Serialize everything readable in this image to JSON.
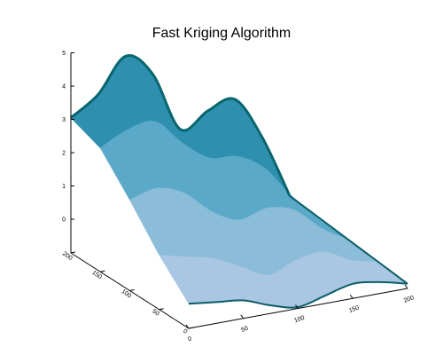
{
  "chart_data": {
    "type": "surface",
    "title": "Fast Kriging Algorithm",
    "xlabel": "",
    "ylabel": "",
    "zlabel": "",
    "x_range": [
      0,
      200
    ],
    "y_range": [
      0,
      200
    ],
    "z_range": [
      -1,
      5
    ],
    "x_ticks": [
      "0",
      "50",
      "100",
      "150",
      "200"
    ],
    "y_ticks": [
      "0",
      "50",
      "100",
      "150",
      "200"
    ],
    "z_ticks": [
      "0",
      "1",
      "2",
      "3",
      "4",
      "5"
    ],
    "grid": false,
    "legend": "none",
    "colors": {
      "surface_light": "#c4cfe8",
      "surface_mid": "#3c9bbb",
      "surface_dark": "#08666f",
      "axis": "#000000"
    },
    "surface_profiles": [
      {
        "y": 200,
        "points": [
          [
            0,
            3.05
          ],
          [
            25,
            3.6
          ],
          [
            50,
            4.6
          ],
          [
            75,
            3.9
          ],
          [
            100,
            2.1
          ],
          [
            125,
            2.5
          ],
          [
            150,
            2.7
          ],
          [
            175,
            1.4
          ],
          [
            200,
            -0.5
          ]
        ]
      },
      {
        "y": 150,
        "points": [
          [
            0,
            2.7
          ],
          [
            25,
            3.1
          ],
          [
            50,
            3.2
          ],
          [
            75,
            2.4
          ],
          [
            100,
            1.8
          ],
          [
            125,
            1.7
          ],
          [
            150,
            1.2
          ],
          [
            175,
            0.2
          ],
          [
            200,
            -0.6
          ]
        ]
      },
      {
        "y": 100,
        "points": [
          [
            0,
            1.7
          ],
          [
            25,
            1.9
          ],
          [
            50,
            1.6
          ],
          [
            75,
            0.9
          ],
          [
            100,
            0.5
          ],
          [
            125,
            0.7
          ],
          [
            150,
            0.5
          ],
          [
            175,
            -0.2
          ],
          [
            200,
            -0.7
          ]
        ]
      },
      {
        "y": 50,
        "points": [
          [
            0,
            0.6
          ],
          [
            25,
            0.4
          ],
          [
            50,
            0.2
          ],
          [
            75,
            -0.2
          ],
          [
            100,
            -0.6
          ],
          [
            125,
            -0.3
          ],
          [
            150,
            -0.2
          ],
          [
            175,
            -0.6
          ],
          [
            200,
            -0.8
          ]
        ]
      },
      {
        "y": 0,
        "points": [
          [
            0,
            -0.3
          ],
          [
            25,
            -0.4
          ],
          [
            50,
            -0.5
          ],
          [
            75,
            -0.8
          ],
          [
            100,
            -1.0
          ],
          [
            125,
            -0.8
          ],
          [
            150,
            -0.6
          ],
          [
            175,
            -0.7
          ],
          [
            200,
            -0.9
          ]
        ]
      }
    ]
  }
}
